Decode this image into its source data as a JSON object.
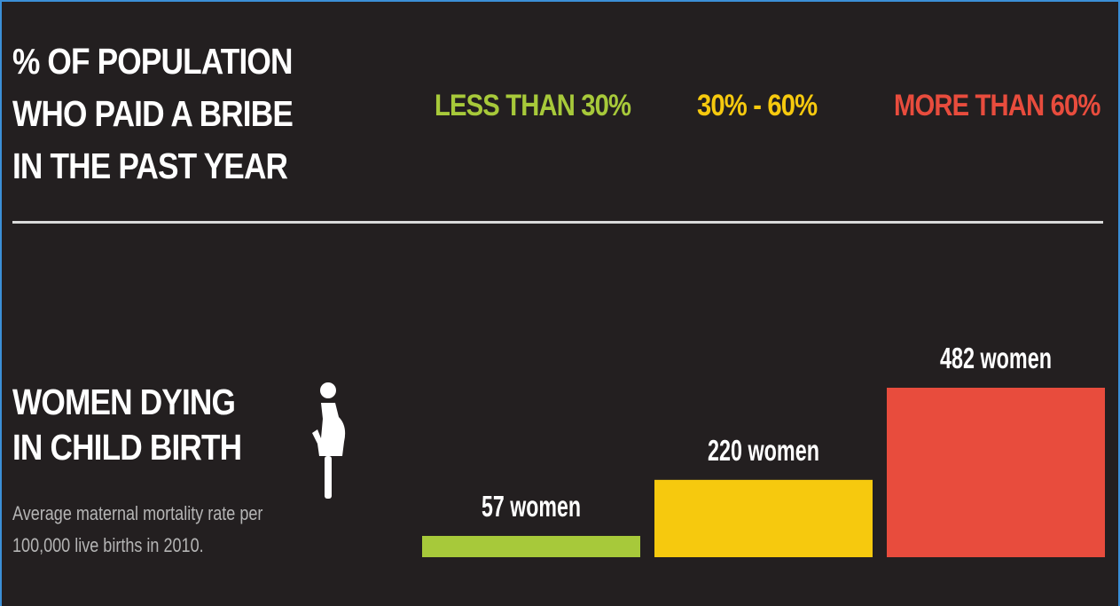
{
  "header": {
    "title_lines": [
      "% OF POPULATION",
      "WHO PAID A BRIBE",
      "IN THE PAST YEAR"
    ]
  },
  "legend": [
    {
      "label": "LESS THAN 30%",
      "color": "#a7c93a"
    },
    {
      "label": "30% - 60%",
      "color": "#f6c90e"
    },
    {
      "label": "MORE THAN 60%",
      "color": "#e84c3d"
    }
  ],
  "section": {
    "title_lines": [
      "WOMEN DYING",
      "IN CHILD BIRTH"
    ],
    "subtitle_lines": [
      "Average maternal mortality rate per",
      "100,000 live births in 2010."
    ],
    "icon": "pregnant-woman-icon"
  },
  "chart_data": {
    "type": "bar",
    "categories": [
      "LESS THAN 30%",
      "30% - 60%",
      "MORE THAN 60%"
    ],
    "values": [
      57,
      220,
      482
    ],
    "data_labels": [
      "57 women",
      "220 women",
      "482 women"
    ],
    "colors": [
      "#a7c93a",
      "#f6c90e",
      "#e84c3d"
    ],
    "ylim": [
      0,
      482
    ],
    "grid": false,
    "legend_placement": "top"
  }
}
